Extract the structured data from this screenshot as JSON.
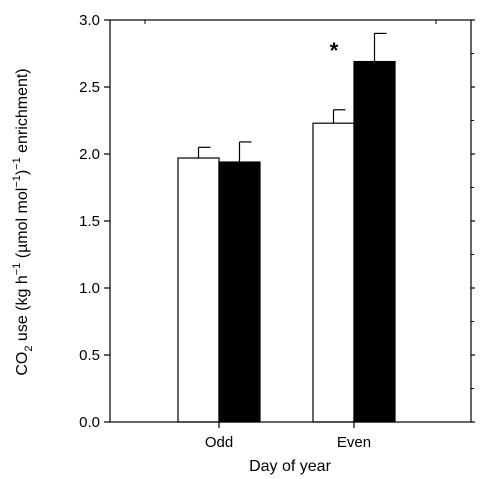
{
  "chart_data": {
    "type": "bar",
    "title": "",
    "xlabel": "Day of year",
    "ylabel": {
      "pre": "CO",
      "sub": "2",
      "mid1": " use (kg h",
      "sup1": "−1",
      "mid2": " (µmol mol",
      "sup2": "−1",
      "mid3": ")",
      "sup3": "−1",
      "post": " enrichment)"
    },
    "ylim": [
      0,
      3.0
    ],
    "yticks": [
      "0.0",
      "0.5",
      "1.0",
      "1.5",
      "2.0",
      "2.5",
      "3.0"
    ],
    "grid": false,
    "categories": [
      "Odd",
      "Even"
    ],
    "series": [
      {
        "fill": "#ffffff",
        "values": [
          1.97,
          2.23
        ],
        "errors": [
          0.08,
          0.1
        ]
      },
      {
        "fill": "#000000",
        "values": [
          1.94,
          2.69
        ],
        "errors": [
          0.15,
          0.21
        ]
      }
    ],
    "annotations": [
      {
        "text": "*",
        "category": "Even",
        "y": 2.7
      }
    ]
  }
}
